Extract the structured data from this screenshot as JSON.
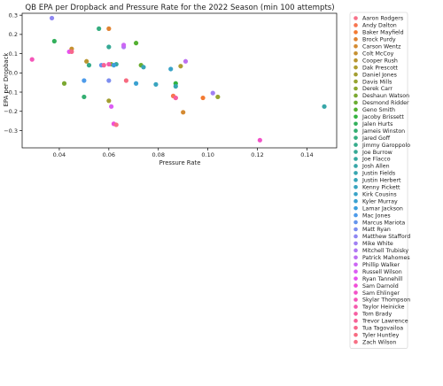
{
  "chart_data": {
    "type": "scatter",
    "title": "QB EPA per Dropback and Pressure Rate for the 2022 Season (min 100 attempts)",
    "xlabel": "Pressure Rate",
    "ylabel": "EPA per Dropback",
    "xlim": [
      0.025,
      0.152
    ],
    "ylim": [
      -0.39,
      0.31
    ],
    "xticks": [
      "0.04",
      "0.06",
      "0.08",
      "0.10",
      "0.12",
      "0.14"
    ],
    "yticks": [
      "0.3",
      "0.2",
      "0.1",
      "0.0",
      "−0.1",
      "−0.2",
      "−0.3"
    ],
    "xtick_values": [
      0.04,
      0.06,
      0.08,
      0.1,
      0.12,
      0.14
    ],
    "ytick_values": [
      0.3,
      0.2,
      0.1,
      0.0,
      -0.1,
      -0.2,
      -0.3
    ],
    "legend_position": "outside-right",
    "grid": false,
    "series": [
      {
        "name": "Aaron Rodgers",
        "color": "#f77189",
        "x": 0.087,
        "y": -0.13
      },
      {
        "name": "Andy Dalton",
        "color": "#f7754f",
        "x": 0.086,
        "y": -0.12
      },
      {
        "name": "Baker Mayfield",
        "color": "#f37a31",
        "x": 0.098,
        "y": -0.13
      },
      {
        "name": "Brock Purdy",
        "color": "#e08331",
        "x": 0.06,
        "y": 0.23
      },
      {
        "name": "Carson Wentz",
        "color": "#d48a31",
        "x": 0.09,
        "y": -0.205
      },
      {
        "name": "Colt McCoy",
        "color": "#c69131",
        "x": 0.045,
        "y": 0.125
      },
      {
        "name": "Cooper Rush",
        "color": "#b99631",
        "x": 0.051,
        "y": 0.06
      },
      {
        "name": "Dak Prescott",
        "color": "#ae9d31",
        "x": 0.089,
        "y": 0.035
      },
      {
        "name": "Daniel Jones",
        "color": "#a39e31",
        "x": 0.06,
        "y": -0.145
      },
      {
        "name": "Davis Mills",
        "color": "#97a431",
        "x": 0.104,
        "y": -0.125
      },
      {
        "name": "Derek Carr",
        "color": "#8ba731",
        "x": 0.061,
        "y": 0.045
      },
      {
        "name": "Deshaun Watson",
        "color": "#7ba831",
        "x": 0.042,
        "y": -0.055
      },
      {
        "name": "Desmond Ridder",
        "color": "#6aac31",
        "x": 0.073,
        "y": 0.04
      },
      {
        "name": "Geno Smith",
        "color": "#53b031",
        "x": 0.071,
        "y": 0.155
      },
      {
        "name": "Jacoby Brissett",
        "color": "#32b33f",
        "x": 0.087,
        "y": -0.055
      },
      {
        "name": "Jalen Hurts",
        "color": "#33b05c",
        "x": 0.038,
        "y": 0.165
      },
      {
        "name": "Jameis Winston",
        "color": "#34ae71",
        "x": 0.05,
        "y": -0.125
      },
      {
        "name": "Jared Goff",
        "color": "#35ad7f",
        "x": 0.056,
        "y": 0.23
      },
      {
        "name": "Jimmy Garoppolo",
        "color": "#35ab8b",
        "x": 0.052,
        "y": 0.04
      },
      {
        "name": "Joe Burrow",
        "color": "#36a995",
        "x": 0.06,
        "y": 0.135
      },
      {
        "name": "Joe Flacco",
        "color": "#36a89f",
        "x": 0.063,
        "y": 0.045
      },
      {
        "name": "Josh Allen",
        "color": "#37a6a8",
        "x": 0.147,
        "y": -0.175
      },
      {
        "name": "Justin Fields",
        "color": "#37a6b0",
        "x": 0.087,
        "y": -0.07
      },
      {
        "name": "Justin Herbert",
        "color": "#38a5b8",
        "x": 0.074,
        "y": 0.03
      },
      {
        "name": "Kenny Pickett",
        "color": "#38a4bf",
        "x": 0.079,
        "y": -0.06
      },
      {
        "name": "Kirk Cousins",
        "color": "#39a3c7",
        "x": 0.085,
        "y": 0.02
      },
      {
        "name": "Kyler Murray",
        "color": "#3aa1d1",
        "x": 0.071,
        "y": -0.055
      },
      {
        "name": "Lamar Jackson",
        "color": "#3c9fdc",
        "x": 0.062,
        "y": 0.04
      },
      {
        "name": "Mac Jones",
        "color": "#4d9bea",
        "x": 0.05,
        "y": -0.04
      },
      {
        "name": "Marcus Mariota",
        "color": "#6495ed",
        "x": 0.057,
        "y": 0.04
      },
      {
        "name": "Matt Ryan",
        "color": "#7d8ef0",
        "x": 0.06,
        "y": -0.04
      },
      {
        "name": "Matthew Stafford",
        "color": "#8f87f2",
        "x": 0.037,
        "y": 0.285
      },
      {
        "name": "Mike White",
        "color": "#a080f3",
        "x": 0.102,
        "y": -0.105
      },
      {
        "name": "Mitchell Trubisky",
        "color": "#b078f3",
        "x": 0.066,
        "y": 0.135
      },
      {
        "name": "Patrick Mahomes",
        "color": "#bd6ff3",
        "x": 0.091,
        "y": 0.06
      },
      {
        "name": "Phillip Walker",
        "color": "#cc66f4",
        "x": 0.066,
        "y": 0.145
      },
      {
        "name": "Russell Wilson",
        "color": "#db5cf4",
        "x": 0.061,
        "y": -0.175
      },
      {
        "name": "Ryan Tannehill",
        "color": "#e652f1",
        "x": 0.044,
        "y": 0.11
      },
      {
        "name": "Sam Darnold",
        "color": "#f04ed7",
        "x": 0.062,
        "y": -0.265
      },
      {
        "name": "Sam Ehlinger",
        "color": "#f252c8",
        "x": 0.121,
        "y": -0.35
      },
      {
        "name": "Skylar Thompson",
        "color": "#f456b9",
        "x": 0.029,
        "y": 0.07
      },
      {
        "name": "Taylor Heinicke",
        "color": "#f55aad",
        "x": 0.06,
        "y": 0.045
      },
      {
        "name": "Tom Brady",
        "color": "#f65ea2",
        "x": 0.087,
        "y": -0.13
      },
      {
        "name": "Trevor Lawrence",
        "color": "#f66296",
        "x": 0.058,
        "y": 0.04
      },
      {
        "name": "Tua Tagovailoa",
        "color": "#f7678c",
        "x": 0.045,
        "y": 0.11
      },
      {
        "name": "Tyler Huntley",
        "color": "#f76a80",
        "x": 0.067,
        "y": -0.04
      },
      {
        "name": "Zach Wilson",
        "color": "#f77085",
        "x": 0.063,
        "y": -0.27
      }
    ]
  }
}
